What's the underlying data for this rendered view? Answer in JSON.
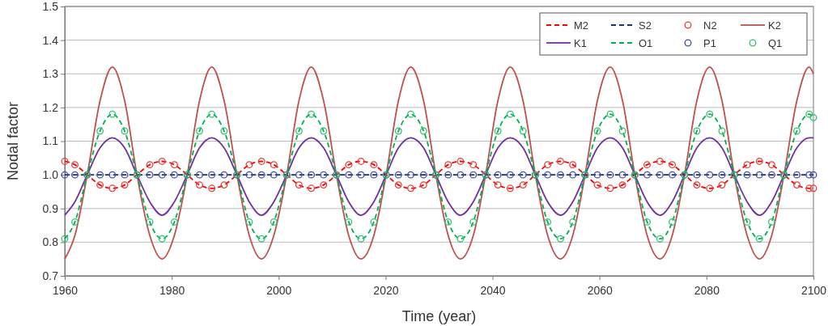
{
  "chart_data": {
    "type": "line",
    "xlabel": "Time (year)",
    "ylabel": "Nodal factor",
    "xlim": [
      1960,
      2100
    ],
    "xticks": [
      1960,
      1980,
      2000,
      2020,
      2040,
      2060,
      2080,
      2100
    ],
    "ylim": [
      0.7,
      1.5
    ],
    "yticks": [
      {
        "value": 0.7,
        "label": "0.7"
      },
      {
        "value": 0.8,
        "label": "0.8"
      },
      {
        "value": 0.9,
        "label": "0.9"
      },
      {
        "value": 1.0,
        "label": "1.0"
      },
      {
        "value": 1.1,
        "label": "1.1"
      },
      {
        "value": 1.2,
        "label": "1.2"
      },
      {
        "value": 1.3,
        "label": "1.3"
      },
      {
        "value": 1.4,
        "label": "1.4"
      },
      {
        "value": 1.5,
        "label": "1.5"
      }
    ],
    "grid": "y",
    "legend": "top right",
    "x": [
      1960,
      1961.9,
      1964.2,
      1966.6,
      1968.9,
      1971.2,
      1973.5,
      1975.9,
      1978.2,
      1980.5,
      1982.9,
      1985.2,
      1987.5,
      1989.8,
      1992.2,
      1994.5,
      1996.8,
      1999.1,
      2001.5,
      2003.8,
      2006.1,
      2008.4,
      2010.8,
      2013.1,
      2015.4,
      2017.8,
      2020.1,
      2022.4,
      2024.7,
      2027.1,
      2029.4,
      2031.7,
      2034.0,
      2036.4,
      2038.7,
      2041.0,
      2043.3,
      2045.7,
      2048.0,
      2050.3,
      2052.7,
      2055.0,
      2057.3,
      2059.6,
      2062.0,
      2064.3,
      2066.6,
      2068.9,
      2071.3,
      2073.6,
      2075.9,
      2078.2,
      2080.6,
      2082.9,
      2085.2,
      2087.6,
      2089.9,
      2092.2,
      2094.5,
      2096.9,
      2099.2,
      2100
    ],
    "series": [
      {
        "name": "M2",
        "type": "line",
        "color": "#ff0000",
        "line_style": "dashed",
        "values": [
          1.04,
          1.03,
          1,
          0.97,
          0.96,
          0.97,
          1,
          1.03,
          1.04,
          1.03,
          1,
          0.97,
          0.96,
          0.97,
          1,
          1.03,
          1.04,
          1.03,
          1,
          0.97,
          0.96,
          0.97,
          1,
          1.03,
          1.04,
          1.03,
          1,
          0.97,
          0.96,
          0.97,
          1,
          1.03,
          1.04,
          1.03,
          1,
          0.97,
          0.96,
          0.97,
          1,
          1.03,
          1.04,
          1.03,
          1,
          0.97,
          0.96,
          0.97,
          1,
          1.03,
          1.04,
          1.03,
          1,
          0.97,
          0.96,
          0.97,
          1,
          1.03,
          1.04,
          1.03,
          1,
          0.97,
          0.96,
          0.96
        ]
      },
      {
        "name": "S2",
        "type": "line",
        "color": "#1f2f80",
        "line_style": "dashed",
        "values": [
          1,
          1,
          1,
          1,
          1,
          1,
          1,
          1,
          1,
          1,
          1,
          1,
          1,
          1,
          1,
          1,
          1,
          1,
          1,
          1,
          1,
          1,
          1,
          1,
          1,
          1,
          1,
          1,
          1,
          1,
          1,
          1,
          1,
          1,
          1,
          1,
          1,
          1,
          1,
          1,
          1,
          1,
          1,
          1,
          1,
          1,
          1,
          1,
          1,
          1,
          1,
          1,
          1,
          1,
          1,
          1,
          1,
          1,
          1,
          1,
          1,
          1
        ]
      },
      {
        "name": "N2",
        "type": "scatter",
        "color": "#e83c3c",
        "marker": "circle",
        "values": [
          1.04,
          1.03,
          1,
          0.97,
          0.96,
          0.97,
          1,
          1.03,
          1.04,
          1.03,
          1,
          0.97,
          0.96,
          0.97,
          1,
          1.03,
          1.04,
          1.03,
          1,
          0.97,
          0.96,
          0.97,
          1,
          1.03,
          1.04,
          1.03,
          1,
          0.97,
          0.96,
          0.97,
          1,
          1.03,
          1.04,
          1.03,
          1,
          0.97,
          0.96,
          0.97,
          1,
          1.03,
          1.04,
          1.03,
          1,
          0.97,
          0.96,
          0.97,
          1,
          1.03,
          1.04,
          1.03,
          1,
          0.97,
          0.96,
          0.97,
          1,
          1.03,
          1.04,
          1.03,
          1,
          0.97,
          0.96,
          0.96
        ]
      },
      {
        "name": "K2",
        "type": "line",
        "color": "#c0504d",
        "line_style": "solid",
        "values": [
          0.75,
          0.82,
          1,
          1.22,
          1.32,
          1.22,
          1,
          0.82,
          0.75,
          0.82,
          1,
          1.22,
          1.32,
          1.22,
          1,
          0.82,
          0.75,
          0.82,
          1,
          1.22,
          1.32,
          1.22,
          1,
          0.82,
          0.75,
          0.82,
          1,
          1.22,
          1.32,
          1.22,
          1,
          0.82,
          0.75,
          0.82,
          1,
          1.22,
          1.32,
          1.22,
          1,
          0.82,
          0.75,
          0.82,
          1,
          1.22,
          1.32,
          1.22,
          1,
          0.82,
          0.75,
          0.82,
          1,
          1.22,
          1.32,
          1.22,
          1,
          0.82,
          0.75,
          0.82,
          1,
          1.22,
          1.32,
          1.3
        ]
      },
      {
        "name": "K1",
        "type": "line",
        "color": "#7030a0",
        "line_style": "solid",
        "values": [
          0.88,
          0.92,
          1,
          1.08,
          1.11,
          1.08,
          1,
          0.92,
          0.88,
          0.92,
          1,
          1.08,
          1.11,
          1.08,
          1,
          0.92,
          0.88,
          0.92,
          1,
          1.08,
          1.11,
          1.08,
          1,
          0.92,
          0.88,
          0.92,
          1,
          1.08,
          1.11,
          1.08,
          1,
          0.92,
          0.88,
          0.92,
          1,
          1.08,
          1.11,
          1.08,
          1,
          0.92,
          0.88,
          0.92,
          1,
          1.08,
          1.11,
          1.08,
          1,
          0.92,
          0.88,
          0.92,
          1,
          1.08,
          1.11,
          1.08,
          1,
          0.92,
          0.88,
          0.92,
          1,
          1.08,
          1.11,
          1.11
        ]
      },
      {
        "name": "O1",
        "type": "line",
        "color": "#00b050",
        "line_style": "dashed",
        "values": [
          0.81,
          0.86,
          1,
          1.13,
          1.18,
          1.13,
          1,
          0.86,
          0.81,
          0.86,
          1,
          1.13,
          1.18,
          1.13,
          1,
          0.86,
          0.81,
          0.86,
          1,
          1.13,
          1.18,
          1.13,
          1,
          0.86,
          0.81,
          0.86,
          1,
          1.13,
          1.18,
          1.13,
          1,
          0.86,
          0.81,
          0.86,
          1,
          1.13,
          1.18,
          1.13,
          1,
          0.86,
          0.81,
          0.86,
          1,
          1.13,
          1.18,
          1.13,
          1,
          0.86,
          0.81,
          0.86,
          1,
          1.13,
          1.18,
          1.13,
          1,
          0.86,
          0.81,
          0.86,
          1,
          1.13,
          1.18,
          1.17
        ]
      },
      {
        "name": "P1",
        "type": "scatter",
        "color": "#3f4fa0",
        "marker": "circle",
        "values": [
          1,
          1,
          1,
          1,
          1,
          1,
          1,
          1,
          1,
          1,
          1,
          1,
          1,
          1,
          1,
          1,
          1,
          1,
          1,
          1,
          1,
          1,
          1,
          1,
          1,
          1,
          1,
          1,
          1,
          1,
          1,
          1,
          1,
          1,
          1,
          1,
          1,
          1,
          1,
          1,
          1,
          1,
          1,
          1,
          1,
          1,
          1,
          1,
          1,
          1,
          1,
          1,
          1,
          1,
          1,
          1,
          1,
          1,
          1,
          1,
          1,
          1
        ]
      },
      {
        "name": "Q1",
        "type": "scatter",
        "color": "#33c070",
        "marker": "circle",
        "values": [
          0.81,
          0.86,
          1,
          1.13,
          1.18,
          1.13,
          1,
          0.86,
          0.81,
          0.86,
          1,
          1.13,
          1.18,
          1.13,
          1,
          0.86,
          0.81,
          0.86,
          1,
          1.13,
          1.18,
          1.13,
          1,
          0.86,
          0.81,
          0.86,
          1,
          1.13,
          1.18,
          1.13,
          1,
          0.86,
          0.81,
          0.86,
          1,
          1.13,
          1.18,
          1.13,
          1,
          0.86,
          0.81,
          0.86,
          1,
          1.13,
          1.18,
          1.13,
          1,
          0.86,
          0.81,
          0.86,
          1,
          1.13,
          1.18,
          1.13,
          1,
          0.86,
          0.81,
          0.86,
          1,
          1.13,
          1.18,
          1.17
        ]
      }
    ]
  }
}
